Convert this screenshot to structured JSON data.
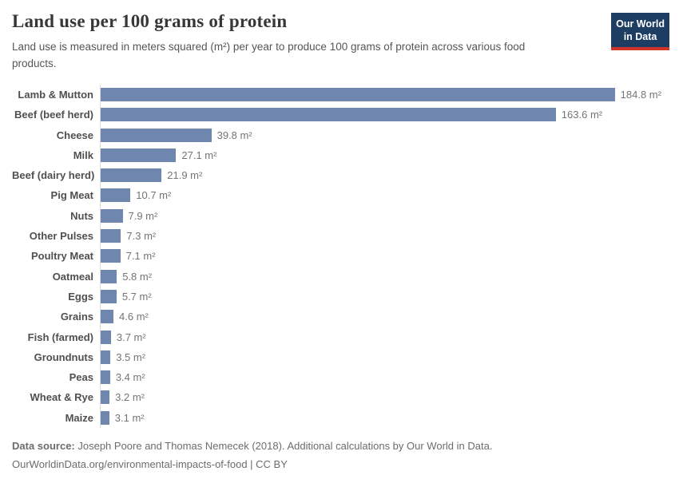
{
  "header": {
    "title": "Land use per 100 grams of protein",
    "subtitle": "Land use is measured in meters squared (m²) per year to produce 100 grams of protein across various food products."
  },
  "logo": {
    "line1": "Our World",
    "line2": "in Data",
    "bg_color": "#1d3d63",
    "accent_color": "#d13328",
    "text_color": "#ffffff"
  },
  "chart_data": {
    "type": "bar",
    "orientation": "horizontal",
    "title": "Land use per 100 grams of protein",
    "unit": "m²",
    "xlabel": "",
    "ylabel": "",
    "xlim": [
      0,
      184.8
    ],
    "grid": false,
    "legend": "none",
    "bar_color": "#6f86ae",
    "axis_line_color": "#dcdcdc",
    "categories": [
      "Lamb & Mutton",
      "Beef (beef herd)",
      "Cheese",
      "Milk",
      "Beef (dairy herd)",
      "Pig Meat",
      "Nuts",
      "Other Pulses",
      "Poultry Meat",
      "Oatmeal",
      "Eggs",
      "Grains",
      "Fish (farmed)",
      "Groundnuts",
      "Peas",
      "Wheat & Rye",
      "Maize"
    ],
    "values": [
      184.8,
      163.6,
      39.8,
      27.1,
      21.9,
      10.7,
      7.9,
      7.3,
      7.1,
      5.8,
      5.7,
      4.6,
      3.7,
      3.5,
      3.4,
      3.2,
      3.1
    ],
    "value_labels": [
      "184.8 m²",
      "163.6 m²",
      "39.8 m²",
      "27.1 m²",
      "21.9 m²",
      "10.7 m²",
      "7.9 m²",
      "7.3 m²",
      "7.1 m²",
      "5.8 m²",
      "5.7 m²",
      "4.6 m²",
      "3.7 m²",
      "3.5 m²",
      "3.4 m²",
      "3.2 m²",
      "3.1 m²"
    ]
  },
  "footer": {
    "source_label": "Data source:",
    "source_text": " Joseph Poore and Thomas Nemecek (2018). Additional calculations by Our World in Data.",
    "link_text": "OurWorldinData.org/environmental-impacts-of-food | CC BY"
  }
}
